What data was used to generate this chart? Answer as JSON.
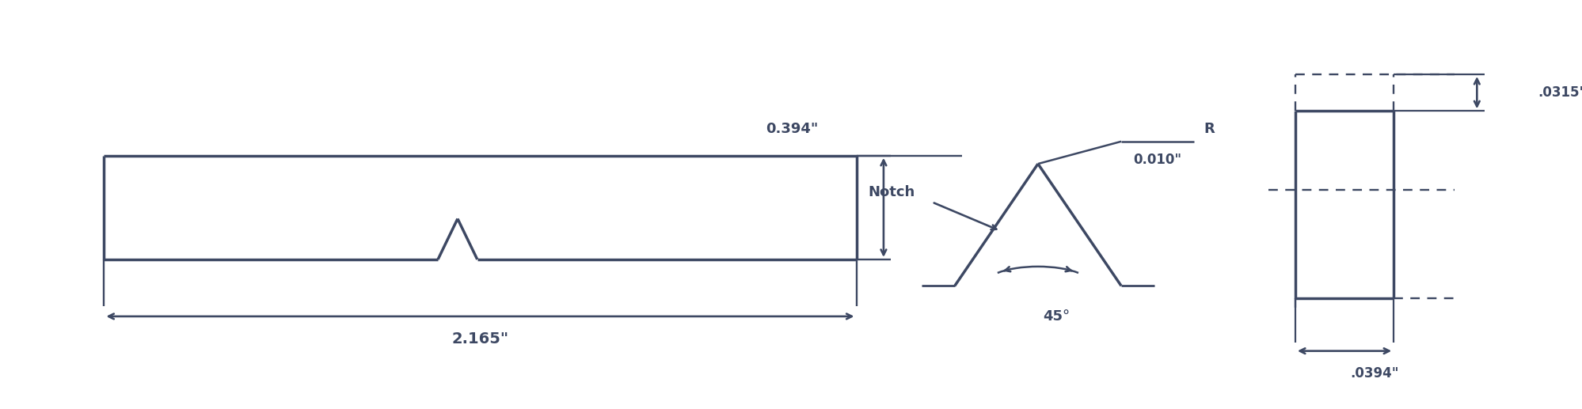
{
  "bg_color": "#ffffff",
  "line_color": "#3d4863",
  "text_color": "#3d4863",
  "fig_width": 19.99,
  "fig_height": 5.17,
  "lw": 2.5,
  "dim_394_label": "0.394\"",
  "dim_2165_label": "2.165\"",
  "dim_010_label": "0.010\"",
  "dim_45_label": "45°",
  "dim_R_label": "R",
  "dim_notch_label": "Notch",
  "dim_0315_label": ".0315\"",
  "dim_0394_label": ".0394\""
}
